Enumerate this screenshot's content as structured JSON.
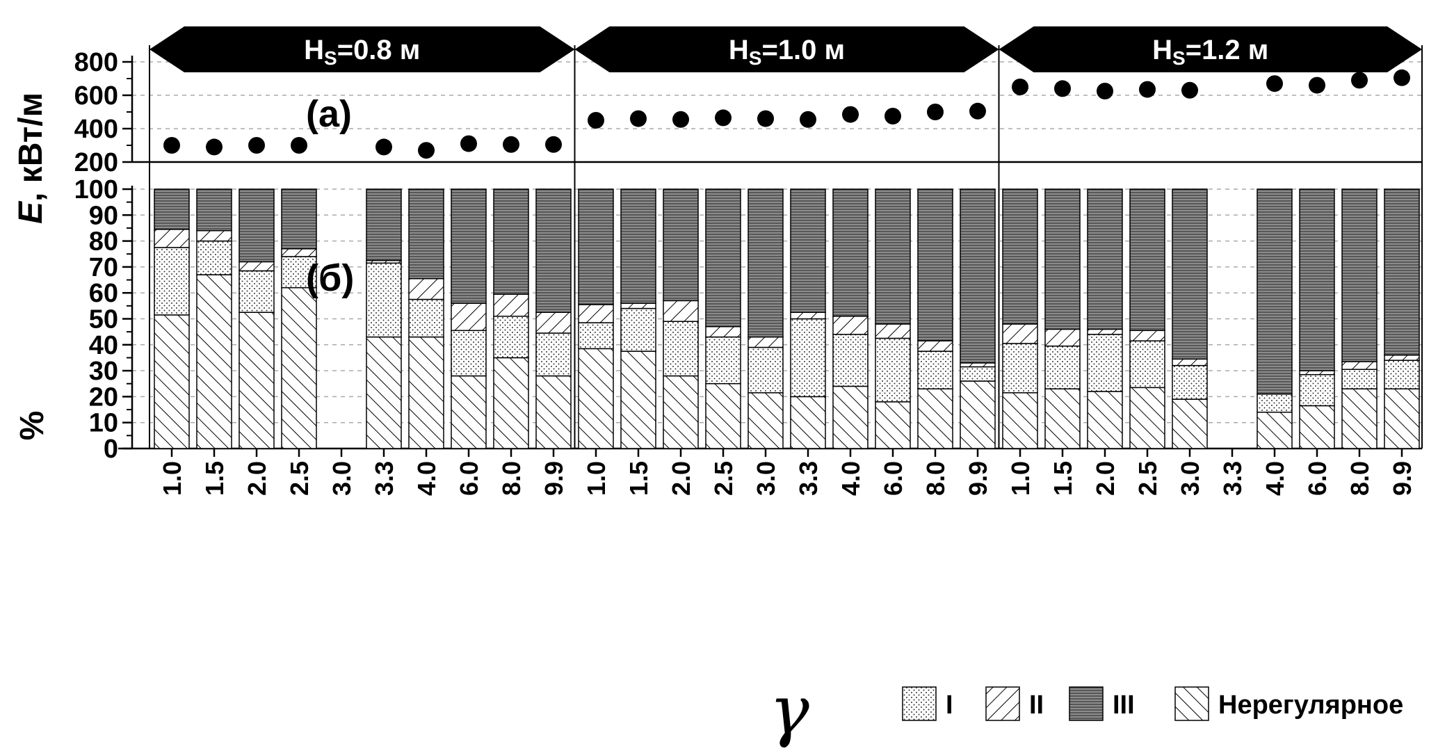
{
  "panel_labels": {
    "a": "(a)",
    "b": "(б)"
  },
  "chart_data": [
    {
      "type": "scatter",
      "panel": "(a)",
      "ylabel_italic": "E",
      "ylabel_rest": ", кВт/м",
      "ylim": [
        200,
        900
      ],
      "yticks": [
        200,
        400,
        600,
        800
      ],
      "grid": true,
      "groups": [
        {
          "label_main": "H",
          "label_sub": "S",
          "label_rest": "=0.8 м"
        },
        {
          "label_main": "H",
          "label_sub": "S",
          "label_rest": "=1.0 м"
        },
        {
          "label_main": "H",
          "label_sub": "S",
          "label_rest": "=1.2 м"
        }
      ],
      "categories": [
        "1.0",
        "1.5",
        "2.0",
        "2.5",
        "3.0",
        "3.3",
        "4.0",
        "6.0",
        "8.0",
        "9.9"
      ],
      "values": [
        [
          300,
          290,
          300,
          300,
          null,
          290,
          270,
          310,
          305,
          305
        ],
        [
          450,
          460,
          455,
          465,
          460,
          455,
          485,
          475,
          500,
          505
        ],
        [
          650,
          640,
          625,
          635,
          630,
          null,
          670,
          660,
          690,
          705
        ]
      ]
    },
    {
      "type": "bar",
      "stacked": true,
      "panel": "(б)",
      "ylabel": "%",
      "xlabel": "γ",
      "ylim": [
        0,
        100
      ],
      "yticks": [
        0,
        10,
        20,
        30,
        40,
        50,
        60,
        70,
        80,
        90,
        100
      ],
      "grid": true,
      "legend_position": "bottom-right",
      "categories": [
        "1.0",
        "1.5",
        "2.0",
        "2.5",
        "3.0",
        "3.3",
        "4.0",
        "6.0",
        "8.0",
        "9.9",
        "1.0",
        "1.5",
        "2.0",
        "2.5",
        "3.0",
        "3.3",
        "4.0",
        "6.0",
        "8.0",
        "9.9",
        "1.0",
        "1.5",
        "2.0",
        "2.5",
        "3.0",
        "3.3",
        "4.0",
        "6.0",
        "8.0",
        "9.9"
      ],
      "series": [
        {
          "name": "Нерегулярное",
          "pattern": "hatch-fwd",
          "values": [
            51.5,
            67,
            52.5,
            62,
            null,
            43,
            43,
            28,
            35,
            28,
            38.5,
            37.5,
            28,
            25,
            21.5,
            20,
            24,
            18,
            23,
            26,
            21.5,
            23,
            22,
            23.5,
            19,
            null,
            14,
            16.5,
            23,
            23
          ]
        },
        {
          "name": "I",
          "pattern": "dots",
          "values": [
            26,
            13,
            16,
            12,
            null,
            28.5,
            14.5,
            17.5,
            16,
            16.5,
            10,
            16.5,
            21,
            18,
            17.5,
            30,
            20,
            24.5,
            14.5,
            5.5,
            19,
            16.5,
            22,
            18,
            13,
            null,
            7,
            12,
            7.5,
            11
          ]
        },
        {
          "name": "II",
          "pattern": "hatch-back",
          "values": [
            7,
            4,
            3.5,
            3,
            null,
            1,
            8,
            10.5,
            8.5,
            8,
            7,
            2,
            8,
            4,
            4,
            2.5,
            7,
            5.5,
            4,
            1.5,
            7.5,
            6.5,
            2,
            4,
            2.5,
            null,
            0,
            1.5,
            3,
            2
          ]
        },
        {
          "name": "III",
          "pattern": "horizontal",
          "values": [
            15.5,
            16,
            28,
            23,
            null,
            27.5,
            34.5,
            44,
            40.5,
            47.5,
            44.5,
            44,
            43,
            53,
            57,
            47.5,
            49,
            52,
            58.5,
            67,
            52,
            54,
            54,
            54.5,
            65.5,
            null,
            79,
            70,
            66.5,
            64
          ]
        }
      ]
    }
  ]
}
